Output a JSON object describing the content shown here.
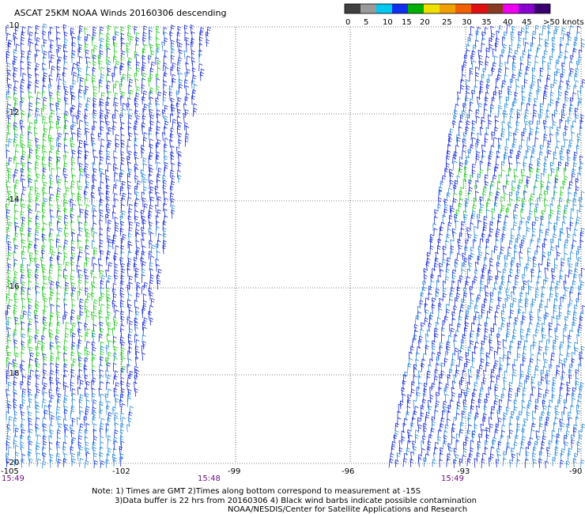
{
  "title": "ASCAT 25KM NOAA Winds 20160306 descending",
  "colorbar": {
    "labels": [
      "0",
      "5",
      "10",
      "15",
      "20",
      "25",
      "30",
      "35",
      "40",
      "45",
      ">50 knots"
    ],
    "colors": [
      "#404040",
      "#9a9a9a",
      "#00c8f0",
      "#1030f0",
      "#00b000",
      "#f0e000",
      "#f0a000",
      "#f06000",
      "#e01010",
      "#8a3a20",
      "#f000f0",
      "#8a00d0",
      "#3a0070"
    ]
  },
  "map": {
    "lon_ticks": [
      "-105",
      "-102",
      "-99",
      "-96",
      "-93",
      "-90"
    ],
    "lat_ticks": [
      "-10",
      "-12",
      "-14",
      "-16",
      "-18",
      "-20"
    ],
    "lon_range": [
      -105,
      -90
    ],
    "lat_range": [
      -20,
      -10
    ]
  },
  "times": [
    "15:49",
    "15:48",
    "15:49"
  ],
  "notes": {
    "line1": "Note: 1) Times are GMT 2)Times along bottom correspond to measurement at -15S",
    "line2": "3)Data buffer is 22 hrs from 20160306 4) Black wind barbs indicate possible contamination",
    "line3": "NOAA/NESDIS/Center for Satellite Applications and Research"
  }
}
